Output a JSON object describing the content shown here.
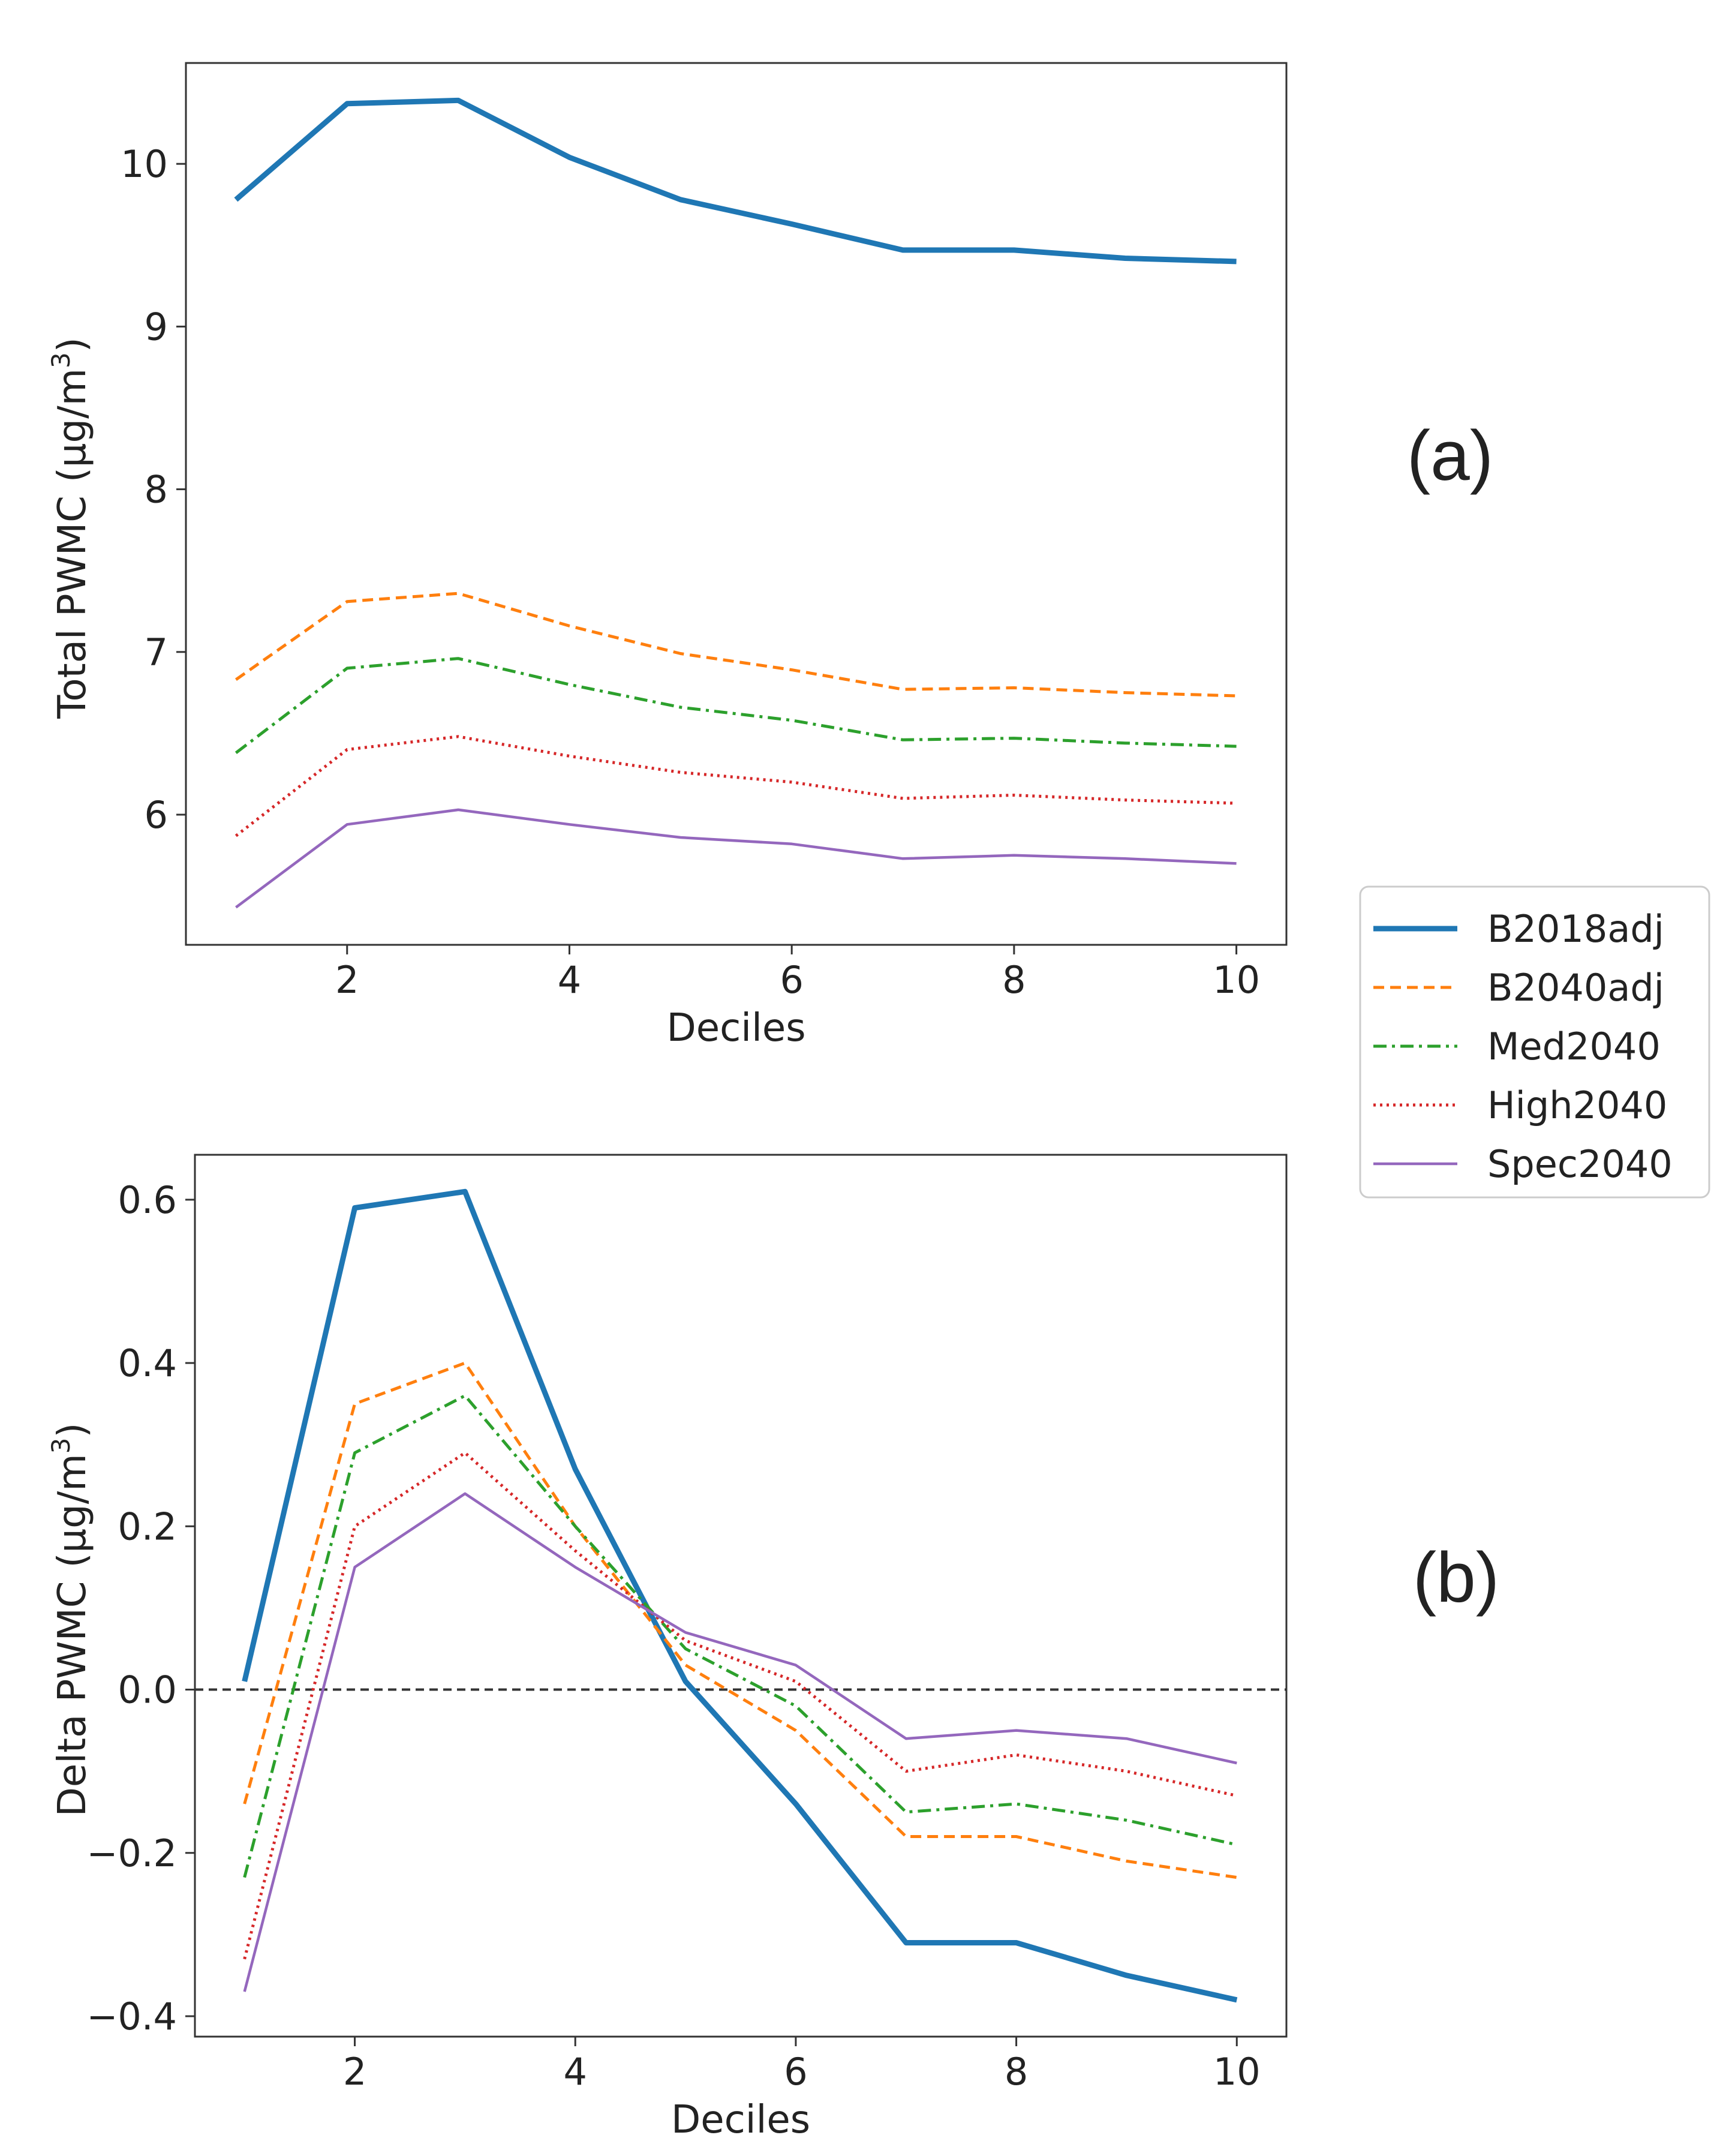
{
  "chart_data": [
    {
      "type": "line",
      "panel_label": "(a)",
      "xlabel": "Deciles",
      "ylabel_main": "Total PWMC",
      "ylabel_unit": "(μg/m",
      "ylabel_sup": "3",
      "ylabel_close": ")",
      "xlim": [
        0.55,
        10.45
      ],
      "ylim": [
        5.2,
        10.62
      ],
      "xticks": [
        2,
        4,
        6,
        8,
        10
      ],
      "xtick_labels": [
        "2",
        "4",
        "6",
        "8",
        "10"
      ],
      "yticks": [
        6,
        7,
        8,
        9,
        10
      ],
      "ytick_labels": [
        "6",
        "7",
        "8",
        "9",
        "10"
      ],
      "x": [
        1,
        2,
        3,
        4,
        5,
        6,
        7,
        8,
        9,
        10
      ],
      "series": [
        {
          "name": "B2018adj",
          "color": "#1f77b4",
          "style": "solid-thick",
          "values": [
            9.78,
            10.37,
            10.39,
            10.04,
            9.78,
            9.63,
            9.47,
            9.47,
            9.42,
            9.4
          ]
        },
        {
          "name": "B2040adj",
          "color": "#ff7f0e",
          "style": "dashed",
          "values": [
            6.83,
            7.31,
            7.36,
            7.16,
            6.99,
            6.89,
            6.77,
            6.78,
            6.75,
            6.73
          ]
        },
        {
          "name": "Med2040",
          "color": "#2ca02c",
          "style": "dashdot",
          "values": [
            6.38,
            6.9,
            6.96,
            6.8,
            6.66,
            6.58,
            6.46,
            6.47,
            6.44,
            6.42
          ]
        },
        {
          "name": "High2040",
          "color": "#d62728",
          "style": "dotted",
          "values": [
            5.87,
            6.4,
            6.48,
            6.36,
            6.26,
            6.2,
            6.1,
            6.12,
            6.09,
            6.07
          ]
        },
        {
          "name": "Spec2040",
          "color": "#9467bd",
          "style": "solid",
          "values": [
            5.43,
            5.94,
            6.03,
            5.94,
            5.86,
            5.82,
            5.73,
            5.75,
            5.73,
            5.7
          ]
        }
      ]
    },
    {
      "type": "line",
      "panel_label": "(b)",
      "xlabel": "Deciles",
      "ylabel_main": "Delta PWMC",
      "ylabel_unit": "(μg/m",
      "ylabel_sup": "3",
      "ylabel_close": ")",
      "xlim": [
        0.55,
        10.45
      ],
      "ylim": [
        -0.425,
        0.655
      ],
      "xticks": [
        2,
        4,
        6,
        8,
        10
      ],
      "xtick_labels": [
        "2",
        "4",
        "6",
        "8",
        "10"
      ],
      "yticks": [
        -0.4,
        -0.2,
        0.0,
        0.2,
        0.4,
        0.6
      ],
      "ytick_labels": [
        "−0.4",
        "−0.2",
        "0.0",
        "0.2",
        "0.4",
        "0.6"
      ],
      "reference_line": 0.0,
      "x": [
        1,
        2,
        3,
        4,
        5,
        6,
        7,
        8,
        9,
        10
      ],
      "series": [
        {
          "name": "B2018adj",
          "color": "#1f77b4",
          "style": "solid-thick",
          "values": [
            0.01,
            0.59,
            0.61,
            0.27,
            0.01,
            -0.14,
            -0.31,
            -0.31,
            -0.35,
            -0.38
          ]
        },
        {
          "name": "B2040adj",
          "color": "#ff7f0e",
          "style": "dashed",
          "values": [
            -0.14,
            0.35,
            0.4,
            0.2,
            0.03,
            -0.05,
            -0.18,
            -0.18,
            -0.21,
            -0.23
          ]
        },
        {
          "name": "Med2040",
          "color": "#2ca02c",
          "style": "dashdot",
          "values": [
            -0.23,
            0.29,
            0.36,
            0.2,
            0.05,
            -0.02,
            -0.15,
            -0.14,
            -0.16,
            -0.19
          ]
        },
        {
          "name": "High2040",
          "color": "#d62728",
          "style": "dotted",
          "values": [
            -0.33,
            0.2,
            0.29,
            0.17,
            0.06,
            0.01,
            -0.1,
            -0.08,
            -0.1,
            -0.13
          ]
        },
        {
          "name": "Spec2040",
          "color": "#9467bd",
          "style": "solid",
          "values": [
            -0.37,
            0.15,
            0.24,
            0.15,
            0.07,
            0.03,
            -0.06,
            -0.05,
            -0.06,
            -0.09
          ]
        }
      ]
    }
  ],
  "legend": {
    "placement": "right",
    "entries": [
      {
        "name": "B2018adj",
        "color": "#1f77b4",
        "style": "solid-thick"
      },
      {
        "name": "B2040adj",
        "color": "#ff7f0e",
        "style": "dashed"
      },
      {
        "name": "Med2040",
        "color": "#2ca02c",
        "style": "dashdot"
      },
      {
        "name": "High2040",
        "color": "#d62728",
        "style": "dotted"
      },
      {
        "name": "Spec2040",
        "color": "#9467bd",
        "style": "solid"
      }
    ]
  }
}
